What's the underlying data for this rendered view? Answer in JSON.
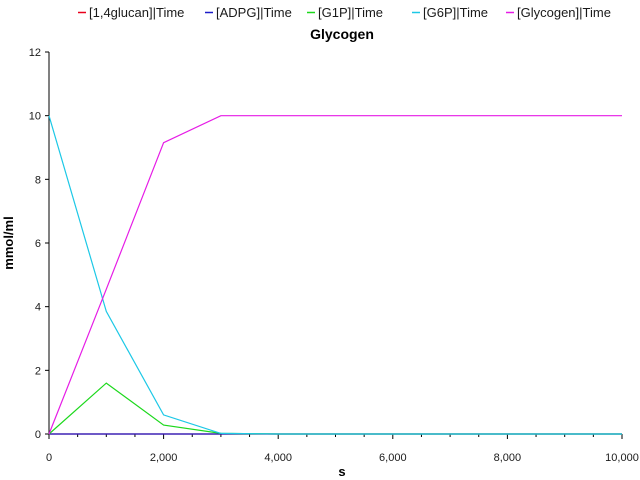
{
  "chart_data": {
    "type": "line",
    "title": "Glycogen",
    "xlabel": "s",
    "ylabel": "mmol/ml",
    "xlim": [
      0,
      10000
    ],
    "ylim": [
      0,
      12
    ],
    "x_ticks": [
      0,
      2000,
      4000,
      6000,
      8000,
      10000
    ],
    "x_tick_labels": [
      "0",
      "2,000",
      "4,000",
      "6,000",
      "8,000",
      "10,000"
    ],
    "y_ticks": [
      0,
      2,
      4,
      6,
      8,
      10,
      12
    ],
    "y_tick_labels": [
      "0",
      "2",
      "4",
      "6",
      "8",
      "10",
      "12"
    ],
    "grid": false,
    "legend_position": "top",
    "x": [
      0,
      1000,
      2000,
      3000,
      4000,
      5000,
      6000,
      7000,
      8000,
      9000,
      10000
    ],
    "series": [
      {
        "name": "[1,4glucan]|Time",
        "color": "#e8001c",
        "values": [
          0,
          0,
          0,
          0,
          0,
          0,
          0,
          0,
          0,
          0,
          0
        ]
      },
      {
        "name": "[ADPG]|Time",
        "color": "#1c1cc8",
        "values": [
          0,
          0,
          0,
          0,
          0,
          0,
          0,
          0,
          0,
          0,
          0
        ]
      },
      {
        "name": "[G1P]|Time",
        "color": "#1cd81c",
        "values": [
          0,
          1.6,
          0.28,
          0.02,
          0,
          0,
          0,
          0,
          0,
          0,
          0
        ]
      },
      {
        "name": "[G6P]|Time",
        "color": "#1cc8e6",
        "values": [
          10,
          3.85,
          0.6,
          0.02,
          0,
          0,
          0,
          0,
          0,
          0,
          0
        ]
      },
      {
        "name": "[Glycogen]|Time",
        "color": "#e61ce6",
        "values": [
          0,
          4.55,
          9.15,
          10,
          10,
          10,
          10,
          10,
          10,
          10,
          10
        ]
      }
    ]
  }
}
